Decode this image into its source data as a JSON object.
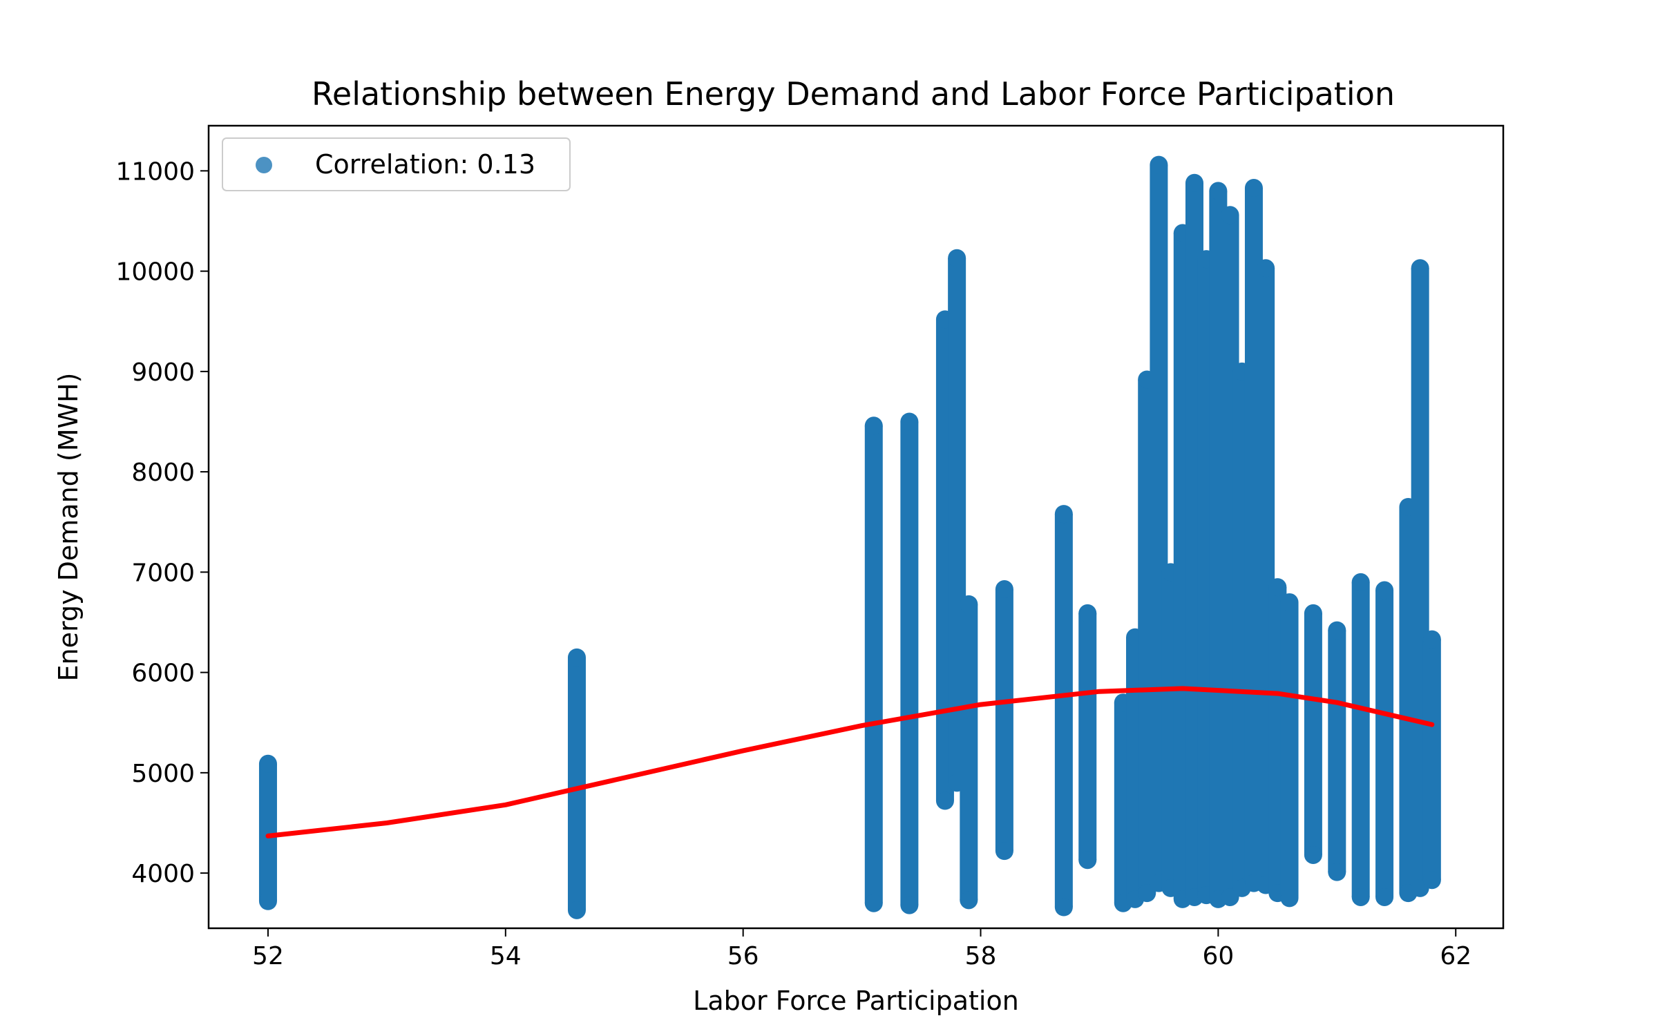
{
  "chart_data": {
    "type": "scatter",
    "title": "Relationship between Energy Demand and Labor Force Participation",
    "xlabel": "Labor Force Participation",
    "ylabel": "Energy Demand (MWH)",
    "xlim": [
      51.5,
      62.4
    ],
    "ylim": [
      3450,
      11450
    ],
    "xticks": [
      52,
      54,
      56,
      58,
      60,
      62
    ],
    "yticks": [
      4000,
      5000,
      6000,
      7000,
      8000,
      9000,
      10000,
      11000
    ],
    "grid": false,
    "legend": {
      "placement": "top-left",
      "entries": [
        "Correlation: 0.13"
      ]
    },
    "colors": {
      "points": "#1f77b4",
      "trend": "#ff0000"
    },
    "series": [
      {
        "name": "Correlation: 0.13",
        "kind": "scatter-columns",
        "columns": [
          {
            "x": 52.0,
            "ymin": 3720,
            "ymax": 5090
          },
          {
            "x": 54.6,
            "ymin": 3630,
            "ymax": 6150
          },
          {
            "x": 57.1,
            "ymin": 3700,
            "ymax": 8460
          },
          {
            "x": 57.4,
            "ymin": 3680,
            "ymax": 8500
          },
          {
            "x": 57.7,
            "ymin": 4720,
            "ymax": 9520
          },
          {
            "x": 57.8,
            "ymin": 4900,
            "ymax": 10130
          },
          {
            "x": 57.9,
            "ymin": 3730,
            "ymax": 6680
          },
          {
            "x": 58.2,
            "ymin": 4220,
            "ymax": 6830
          },
          {
            "x": 58.7,
            "ymin": 3660,
            "ymax": 7580
          },
          {
            "x": 58.9,
            "ymin": 4130,
            "ymax": 6590
          },
          {
            "x": 59.2,
            "ymin": 3700,
            "ymax": 5700
          },
          {
            "x": 59.3,
            "ymin": 3740,
            "ymax": 6350
          },
          {
            "x": 59.4,
            "ymin": 3800,
            "ymax": 8920
          },
          {
            "x": 59.5,
            "ymin": 3900,
            "ymax": 11060
          },
          {
            "x": 59.6,
            "ymin": 3850,
            "ymax": 7000
          },
          {
            "x": 59.7,
            "ymin": 3740,
            "ymax": 10380
          },
          {
            "x": 59.8,
            "ymin": 3760,
            "ymax": 10880
          },
          {
            "x": 59.9,
            "ymin": 3780,
            "ymax": 10120
          },
          {
            "x": 60.0,
            "ymin": 3740,
            "ymax": 10800
          },
          {
            "x": 60.1,
            "ymin": 3760,
            "ymax": 10560
          },
          {
            "x": 60.2,
            "ymin": 3850,
            "ymax": 9000
          },
          {
            "x": 60.3,
            "ymin": 3900,
            "ymax": 10830
          },
          {
            "x": 60.4,
            "ymin": 3880,
            "ymax": 10030
          },
          {
            "x": 60.5,
            "ymin": 3800,
            "ymax": 6850
          },
          {
            "x": 60.6,
            "ymin": 3750,
            "ymax": 6700
          },
          {
            "x": 60.8,
            "ymin": 4180,
            "ymax": 6590
          },
          {
            "x": 61.0,
            "ymin": 4010,
            "ymax": 6420
          },
          {
            "x": 61.2,
            "ymin": 3760,
            "ymax": 6900
          },
          {
            "x": 61.4,
            "ymin": 3760,
            "ymax": 6820
          },
          {
            "x": 61.6,
            "ymin": 3800,
            "ymax": 7650
          },
          {
            "x": 61.7,
            "ymin": 3850,
            "ymax": 10030
          },
          {
            "x": 61.8,
            "ymin": 3930,
            "ymax": 6330
          }
        ]
      },
      {
        "name": "",
        "kind": "trend-line",
        "points": [
          {
            "x": 52.0,
            "y": 4370
          },
          {
            "x": 53.0,
            "y": 4500
          },
          {
            "x": 54.0,
            "y": 4680
          },
          {
            "x": 55.0,
            "y": 4950
          },
          {
            "x": 56.0,
            "y": 5220
          },
          {
            "x": 57.0,
            "y": 5470
          },
          {
            "x": 58.0,
            "y": 5680
          },
          {
            "x": 59.0,
            "y": 5810
          },
          {
            "x": 59.7,
            "y": 5840
          },
          {
            "x": 60.5,
            "y": 5790
          },
          {
            "x": 61.0,
            "y": 5700
          },
          {
            "x": 61.8,
            "y": 5480
          }
        ]
      }
    ]
  }
}
